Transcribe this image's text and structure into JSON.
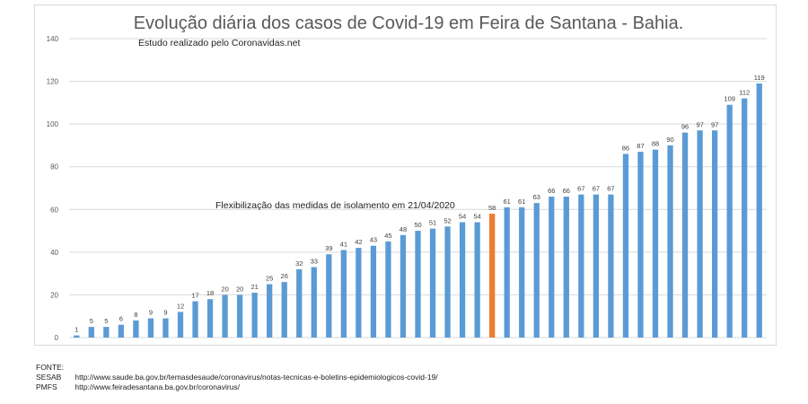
{
  "chart_data": {
    "type": "bar",
    "title": "Evolução diária dos casos de Covid-19 em Feira de Santana - Bahia.",
    "subtitle": "Estudo realizado pelo Coronavidas.net",
    "annotation": "Flexibilização das medidas de isolamento em 21/04/2020",
    "highlight_index": 28,
    "ylim": [
      0,
      140
    ],
    "yticks": [
      0,
      20,
      40,
      60,
      80,
      100,
      120,
      140
    ],
    "grid": true,
    "values": [
      1,
      5,
      5,
      6,
      8,
      9,
      9,
      12,
      17,
      18,
      20,
      20,
      21,
      25,
      26,
      32,
      33,
      39,
      41,
      42,
      43,
      45,
      48,
      50,
      51,
      52,
      54,
      54,
      58,
      61,
      61,
      63,
      66,
      66,
      67,
      67,
      67,
      86,
      87,
      88,
      90,
      96,
      97,
      97,
      109,
      112,
      119
    ],
    "colors": {
      "bar": "#5b9bd5",
      "highlight": "#ed7d31",
      "grid": "#d9d9d9"
    }
  },
  "source": {
    "heading": "FONTE:",
    "rows": [
      {
        "label": "SESAB",
        "url": "http://www.saude.ba.gov.br/temasdesaude/coronavirus/notas-tecnicas-e-boletins-epidemiologicos-covid-19/"
      },
      {
        "label": "PMFS",
        "url": "http://www.feiradesantana.ba.gov.br/coronavirus/"
      }
    ]
  }
}
